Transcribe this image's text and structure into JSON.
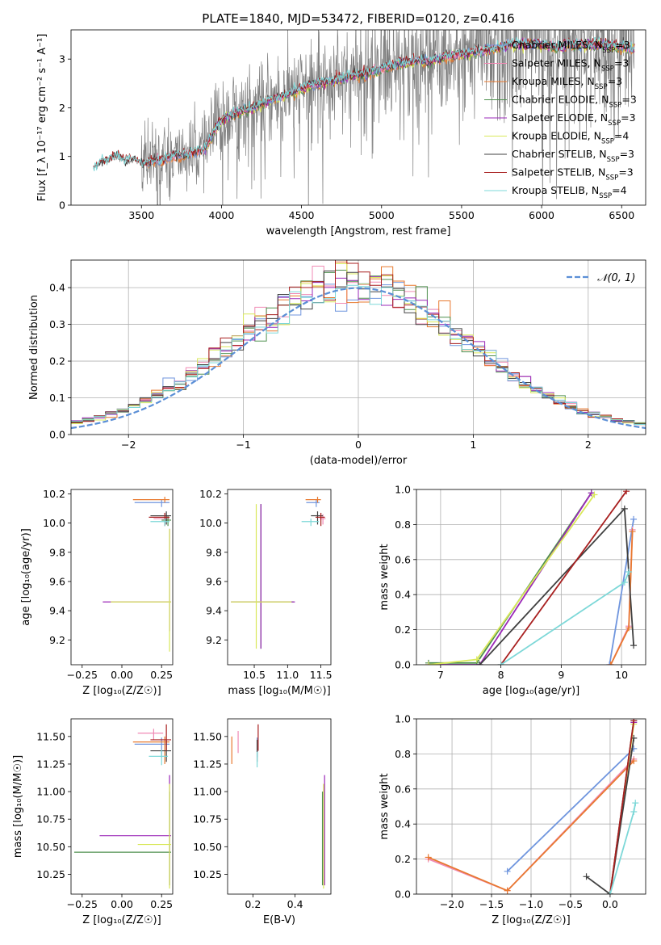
{
  "figure": {
    "title": "PLATE=1840, MJD=53472, FIBERID=0120, z=0.416"
  },
  "colors": {
    "Chabrier MILES": "#6f95de",
    "Salpeter MILES": "#f08ab4",
    "Kroupa MILES": "#e8792f",
    "Chabrier ELODIE": "#4f8f4f",
    "Salpeter ELODIE": "#9b28b8",
    "Kroupa ELODIE": "#d9e85a",
    "Chabrier STELIB": "#404040",
    "Salpeter STELIB": "#a81f1f",
    "Kroupa STELIB": "#7dd8d8",
    "data": "#808080",
    "normal": "#5b8fd6"
  },
  "chart_data": [
    {
      "id": "spectrum",
      "type": "line",
      "xlabel": "wavelength [Angstrom, rest frame]",
      "ylabel": "Flux [f_λ 10⁻¹⁷ erg cm⁻² s⁻¹ A⁻¹]",
      "xlim": [
        3060,
        6650
      ],
      "ylim": [
        0,
        3.6
      ],
      "xticks": [
        3500,
        4000,
        4500,
        5000,
        5500,
        6000,
        6500
      ],
      "yticks": [
        0,
        1,
        2,
        3
      ],
      "legend": "top-right",
      "legend_entries": [
        {
          "model": "Chabrier MILES",
          "label": "Chabrier MILES, N",
          "sub": "SSP",
          "suffix": "=3"
        },
        {
          "model": "Salpeter MILES",
          "label": "Salpeter MILES, N",
          "sub": "SSP",
          "suffix": "=3"
        },
        {
          "model": "Kroupa MILES",
          "label": "Kroupa MILES, N",
          "sub": "SSP",
          "suffix": "=3"
        },
        {
          "model": "Chabrier ELODIE",
          "label": "Chabrier ELODIE, N",
          "sub": "SSP",
          "suffix": "=3"
        },
        {
          "model": "Salpeter ELODIE",
          "label": "Salpeter ELODIE, N",
          "sub": "SSP",
          "suffix": "=3"
        },
        {
          "model": "Kroupa ELODIE",
          "label": "Kroupa ELODIE, N",
          "sub": "SSP",
          "suffix": "=4"
        },
        {
          "model": "Chabrier STELIB",
          "label": "Chabrier STELIB, N",
          "sub": "SSP",
          "suffix": "=3"
        },
        {
          "model": "Salpeter STELIB",
          "label": "Salpeter STELIB, N",
          "sub": "SSP",
          "suffix": "=3"
        },
        {
          "model": "Kroupa STELIB",
          "label": "Kroupa STELIB, N",
          "sub": "SSP",
          "suffix": "=4"
        }
      ],
      "continuum": {
        "x": [
          3200,
          3230,
          3300,
          3350,
          3400,
          3450,
          3500,
          3600,
          3700,
          3800,
          3900,
          3950,
          4000,
          4100,
          4200,
          4300,
          4400,
          4500,
          4600,
          4700,
          4800,
          4900,
          5000,
          5100,
          5200,
          5300,
          5400,
          5500,
          5600,
          5700,
          5800,
          5900,
          6000,
          6100,
          6200,
          6300,
          6400,
          6500,
          6580
        ],
        "y": [
          0.75,
          0.85,
          0.95,
          1.0,
          0.9,
          0.95,
          0.85,
          0.9,
          1.0,
          1.05,
          1.15,
          1.5,
          1.75,
          1.9,
          2.0,
          2.15,
          2.25,
          2.4,
          2.5,
          2.55,
          2.65,
          2.7,
          2.8,
          2.9,
          2.95,
          2.95,
          3.05,
          3.1,
          3.15,
          3.2,
          3.3,
          3.3,
          3.3,
          3.25,
          3.3,
          3.3,
          3.3,
          3.25,
          3.2
        ]
      }
    },
    {
      "id": "residuals",
      "type": "step",
      "xlabel": "(data-model)/error",
      "ylabel": "Normed distribution",
      "xlim": [
        -2.5,
        2.5
      ],
      "ylim": [
        0,
        0.475
      ],
      "xticks": [
        -2,
        -1,
        0,
        1,
        2
      ],
      "yticks": [
        0.0,
        0.1,
        0.2,
        0.3,
        0.4
      ],
      "grid": true,
      "legend": "top-right",
      "legend_label": "𝒩(0, 1)",
      "normal_curve": {
        "mean": 0,
        "std": 1
      }
    },
    {
      "id": "age-vs-Z",
      "type": "errorbar",
      "xlabel": "Z [log₁₀(Z/Z☉)]",
      "ylabel": "age  [log₁₀(age/yr)]",
      "xlim": [
        -0.32,
        0.32
      ],
      "ylim": [
        9.03,
        10.23
      ],
      "xticks": [
        -0.25,
        0.0,
        0.25
      ],
      "yticks": [
        9.2,
        9.4,
        9.6,
        9.8,
        10.0,
        10.2
      ],
      "points": [
        {
          "model": "Chabrier MILES",
          "x": 0.25,
          "xerr": [
            0.17,
            0.05
          ],
          "y": 10.14,
          "yerr": [
            0.03,
            0.02
          ]
        },
        {
          "model": "Salpeter MILES",
          "x": 0.28,
          "xerr": [
            0.08,
            0.02
          ],
          "y": 10.03,
          "yerr": [
            0.04,
            0.03
          ]
        },
        {
          "model": "Kroupa MILES",
          "x": 0.27,
          "xerr": [
            0.2,
            0.03
          ],
          "y": 10.16,
          "yerr": [
            0.02,
            0.02
          ]
        },
        {
          "model": "Chabrier ELODIE",
          "x": 0.29,
          "xerr": [
            0.04,
            0.02
          ],
          "y": 10.02,
          "yerr": [
            0.04,
            0.03
          ]
        },
        {
          "model": "Salpeter ELODIE",
          "x": 0.3,
          "xerr": [
            0.42,
            0.01
          ],
          "y": 9.46,
          "yerr": [
            0.2,
            0.5
          ]
        },
        {
          "model": "Kroupa ELODIE",
          "x": 0.3,
          "xerr": [
            0.37,
            0.01
          ],
          "y": 9.46,
          "yerr": [
            0.34,
            0.5
          ]
        },
        {
          "model": "Chabrier STELIB",
          "x": 0.28,
          "xerr": [
            0.1,
            0.03
          ],
          "y": 10.05,
          "yerr": [
            0.06,
            0.03
          ]
        },
        {
          "model": "Salpeter STELIB",
          "x": 0.27,
          "xerr": [
            0.1,
            0.03
          ],
          "y": 10.04,
          "yerr": [
            0.06,
            0.03
          ]
        },
        {
          "model": "Kroupa STELIB",
          "x": 0.27,
          "xerr": [
            0.09,
            0.03
          ],
          "y": 10.01,
          "yerr": [
            0.03,
            0.02
          ]
        }
      ]
    },
    {
      "id": "age-vs-mass",
      "type": "errorbar",
      "xlabel": "mass [log₁₀(M/M☉)]",
      "ylabel": "",
      "xlim": [
        10.1,
        11.65
      ],
      "ylim": [
        9.03,
        10.23
      ],
      "xticks": [
        10.5,
        11.0,
        11.5
      ],
      "yticks": [
        9.2,
        9.4,
        9.6,
        9.8,
        10.0,
        10.2
      ],
      "points": [
        {
          "model": "Chabrier MILES",
          "x": 11.43,
          "xerr": [
            0.15,
            0.05
          ],
          "y": 10.14,
          "yerr": [
            0.03,
            0.02
          ]
        },
        {
          "model": "Salpeter MILES",
          "x": 11.53,
          "xerr": [
            0.05,
            0.04
          ],
          "y": 10.03,
          "yerr": [
            0.04,
            0.03
          ]
        },
        {
          "model": "Kroupa MILES",
          "x": 11.45,
          "xerr": [
            0.18,
            0.05
          ],
          "y": 10.16,
          "yerr": [
            0.02,
            0.02
          ]
        },
        {
          "model": "Chabrier ELODIE",
          "x": 10.6,
          "xerr": [
            0.44,
            0.49
          ],
          "y": 9.46,
          "yerr": [
            0.32,
            0.67
          ]
        },
        {
          "model": "Salpeter ELODIE",
          "x": 10.6,
          "xerr": [
            0.45,
            0.51
          ],
          "y": 9.46,
          "yerr": [
            0.32,
            0.67
          ]
        },
        {
          "model": "Kroupa ELODIE",
          "x": 10.53,
          "xerr": [
            0.38,
            0.53
          ],
          "y": 9.46,
          "yerr": [
            0.32,
            0.67
          ]
        },
        {
          "model": "Chabrier STELIB",
          "x": 11.45,
          "xerr": [
            0.1,
            0.08
          ],
          "y": 10.05,
          "yerr": [
            0.06,
            0.03
          ]
        },
        {
          "model": "Salpeter STELIB",
          "x": 11.5,
          "xerr": [
            0.08,
            0.06
          ],
          "y": 10.04,
          "yerr": [
            0.06,
            0.03
          ]
        },
        {
          "model": "Kroupa STELIB",
          "x": 11.35,
          "xerr": [
            0.14,
            0.12
          ],
          "y": 10.01,
          "yerr": [
            0.03,
            0.02
          ]
        }
      ]
    },
    {
      "id": "mass-weight-vs-age",
      "type": "line",
      "xlabel": "age  [log₁₀(age/yr)]",
      "ylabel": "mass weight",
      "xlim": [
        6.6,
        10.4
      ],
      "ylim": [
        0,
        1
      ],
      "xticks": [
        7,
        8,
        9,
        10
      ],
      "yticks": [
        0.0,
        0.2,
        0.4,
        0.6,
        0.8,
        1.0
      ],
      "grid": true,
      "series": [
        {
          "model": "Chabrier MILES",
          "x": [
            9.8,
            10.2
          ],
          "y": [
            0.0,
            0.83
          ]
        },
        {
          "model": "Salpeter MILES",
          "x": [
            9.82,
            10.12,
            10.18
          ],
          "y": [
            0.0,
            0.22,
            0.77
          ]
        },
        {
          "model": "Kroupa MILES",
          "x": [
            9.82,
            10.12,
            10.18
          ],
          "y": [
            0.0,
            0.21,
            0.76
          ]
        },
        {
          "model": "Chabrier ELODIE",
          "x": [
            6.8,
            7.6,
            9.5
          ],
          "y": [
            0.01,
            0.01,
            0.98
          ]
        },
        {
          "model": "Salpeter ELODIE",
          "x": [
            6.8,
            7.65,
            9.5
          ],
          "y": [
            0.0,
            0.0,
            0.98
          ]
        },
        {
          "model": "Kroupa ELODIE",
          "x": [
            6.8,
            7.6,
            9.55
          ],
          "y": [
            0.0,
            0.03,
            0.97
          ]
        },
        {
          "model": "Chabrier STELIB",
          "x": [
            7.65,
            10.05,
            10.2
          ],
          "y": [
            0.0,
            0.89,
            0.11
          ]
        },
        {
          "model": "Salpeter STELIB",
          "x": [
            8.0,
            10.08
          ],
          "y": [
            0.0,
            0.99
          ]
        },
        {
          "model": "Kroupa STELIB",
          "x": [
            8.0,
            10.05,
            10.12
          ],
          "y": [
            0.0,
            0.47,
            0.53
          ]
        }
      ]
    },
    {
      "id": "mass-vs-Z",
      "type": "errorbar",
      "xlabel": "Z [log₁₀(Z/Z☉)]",
      "ylabel": "mass [log₁₀(M/M☉)]",
      "xlim": [
        -0.32,
        0.32
      ],
      "ylim": [
        10.07,
        11.66
      ],
      "xticks": [
        -0.25,
        0.0,
        0.25
      ],
      "yticks": [
        10.25,
        10.5,
        10.75,
        11.0,
        11.25,
        11.5
      ],
      "points": [
        {
          "model": "Chabrier MILES",
          "x": 0.25,
          "xerr": [
            0.17,
            0.05
          ],
          "y": 11.43,
          "yerr": [
            0.12,
            0.06
          ]
        },
        {
          "model": "Salpeter MILES",
          "x": 0.2,
          "xerr": [
            0.1,
            0.06
          ],
          "y": 11.53,
          "yerr": [
            0.06,
            0.04
          ]
        },
        {
          "model": "Kroupa MILES",
          "x": 0.27,
          "xerr": [
            0.2,
            0.03
          ],
          "y": 11.45,
          "yerr": [
            0.2,
            0.05
          ]
        },
        {
          "model": "Chabrier ELODIE",
          "x": 0.3,
          "xerr": [
            0.6,
            0.01
          ],
          "y": 10.45,
          "yerr": [
            0.3,
            0.55
          ]
        },
        {
          "model": "Salpeter ELODIE",
          "x": 0.3,
          "xerr": [
            0.44,
            0.01
          ],
          "y": 10.6,
          "yerr": [
            0.45,
            0.55
          ]
        },
        {
          "model": "Kroupa ELODIE",
          "x": 0.3,
          "xerr": [
            0.2,
            0.01
          ],
          "y": 10.52,
          "yerr": [
            0.4,
            0.55
          ]
        },
        {
          "model": "Chabrier STELIB",
          "x": 0.28,
          "xerr": [
            0.1,
            0.03
          ],
          "y": 11.37,
          "yerr": [
            0.1,
            0.1
          ]
        },
        {
          "model": "Salpeter STELIB",
          "x": 0.28,
          "xerr": [
            0.1,
            0.03
          ],
          "y": 11.47,
          "yerr": [
            0.1,
            0.14
          ]
        },
        {
          "model": "Kroupa STELIB",
          "x": 0.25,
          "xerr": [
            0.08,
            0.04
          ],
          "y": 11.32,
          "yerr": [
            0.08,
            0.06
          ]
        }
      ]
    },
    {
      "id": "mass-vs-EBV",
      "type": "errorbar",
      "xlabel": "E(B-V)",
      "ylabel": "",
      "xlim": [
        0.08,
        0.57
      ],
      "ylim": [
        10.07,
        11.66
      ],
      "xticks": [
        0.2,
        0.4
      ],
      "yticks": [
        10.25,
        10.5,
        10.75,
        11.0,
        11.25,
        11.5
      ],
      "points": [
        {
          "model": "Chabrier MILES",
          "x": 0.22,
          "xerr": [
            0.0,
            0.0
          ],
          "y": 11.43,
          "yerr": [
            0.12,
            0.06
          ]
        },
        {
          "model": "Salpeter MILES",
          "x": 0.13,
          "xerr": [
            0.0,
            0.0
          ],
          "y": 11.45,
          "yerr": [
            0.1,
            0.1
          ]
        },
        {
          "model": "Kroupa MILES",
          "x": 0.1,
          "xerr": [
            0.0,
            0.0
          ],
          "y": 11.4,
          "yerr": [
            0.15,
            0.1
          ]
        },
        {
          "model": "Chabrier ELODIE",
          "x": 0.53,
          "xerr": [
            0.0,
            0.0
          ],
          "y": 10.45,
          "yerr": [
            0.3,
            0.55
          ]
        },
        {
          "model": "Salpeter ELODIE",
          "x": 0.54,
          "xerr": [
            0.0,
            0.0
          ],
          "y": 10.6,
          "yerr": [
            0.45,
            0.55
          ]
        },
        {
          "model": "Kroupa ELODIE",
          "x": 0.535,
          "xerr": [
            0.0,
            0.0
          ],
          "y": 10.52,
          "yerr": [
            0.4,
            0.55
          ]
        },
        {
          "model": "Chabrier STELIB",
          "x": 0.22,
          "xerr": [
            0.0,
            0.0
          ],
          "y": 11.37,
          "yerr": [
            0.1,
            0.1
          ]
        },
        {
          "model": "Salpeter STELIB",
          "x": 0.225,
          "xerr": [
            0.0,
            0.0
          ],
          "y": 11.47,
          "yerr": [
            0.1,
            0.14
          ]
        },
        {
          "model": "Kroupa STELIB",
          "x": 0.22,
          "xerr": [
            0.0,
            0.0
          ],
          "y": 11.3,
          "yerr": [
            0.08,
            0.06
          ]
        }
      ]
    },
    {
      "id": "mass-weight-vs-Z",
      "type": "line",
      "xlabel": "Z [log₁₀(Z/Z☉)]",
      "ylabel": "mass weight",
      "xlim": [
        -2.45,
        0.45
      ],
      "ylim": [
        0,
        1
      ],
      "xticks": [
        -2.0,
        -1.5,
        -1.0,
        -0.5,
        0.0
      ],
      "yticks": [
        0.0,
        0.2,
        0.4,
        0.6,
        0.8,
        1.0
      ],
      "grid": true,
      "series": [
        {
          "model": "Chabrier MILES",
          "x": [
            -1.3,
            0.3
          ],
          "y": [
            0.13,
            0.83
          ]
        },
        {
          "model": "Salpeter MILES",
          "x": [
            -2.3,
            -1.3,
            0.3
          ],
          "y": [
            0.2,
            0.02,
            0.77
          ]
        },
        {
          "model": "Kroupa MILES",
          "x": [
            -2.3,
            -1.3,
            0.3
          ],
          "y": [
            0.21,
            0.02,
            0.76
          ]
        },
        {
          "model": "Chabrier ELODIE",
          "x": [
            0.0,
            0.3
          ],
          "y": [
            0.0,
            0.99
          ]
        },
        {
          "model": "Salpeter ELODIE",
          "x": [
            0.0,
            0.3
          ],
          "y": [
            0.0,
            0.98
          ]
        },
        {
          "model": "Kroupa ELODIE",
          "x": [
            0.0,
            0.3
          ],
          "y": [
            0.0,
            0.97
          ]
        },
        {
          "model": "Chabrier STELIB",
          "x": [
            -0.3,
            0.0,
            0.3
          ],
          "y": [
            0.1,
            0.0,
            0.89
          ]
        },
        {
          "model": "Salpeter STELIB",
          "x": [
            0.0,
            0.3
          ],
          "y": [
            0.0,
            0.99
          ]
        },
        {
          "model": "Kroupa STELIB",
          "x": [
            0.0,
            0.3,
            0.32
          ],
          "y": [
            0.0,
            0.47,
            0.52
          ]
        }
      ]
    }
  ]
}
